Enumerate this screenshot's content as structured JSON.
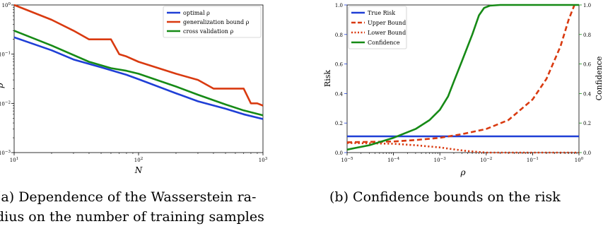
{
  "colors": {
    "blue": "#1f3fd6",
    "red": "#d93a10",
    "green": "#168a16"
  },
  "captions": {
    "left_line1": "(a) Dependence of the Wasserstein ra-",
    "left_line2": "dius on the number of training samples",
    "right": "(b) Confidence bounds on the risk"
  },
  "chart_data": [
    {
      "type": "line",
      "xscale": "log",
      "yscale": "log",
      "xlim": [
        10,
        1000
      ],
      "ylim": [
        0.001,
        1
      ],
      "xlabel": "N",
      "ylabel": "ρ",
      "xticks": [
        {
          "v": 10,
          "b": "10",
          "e": "1"
        },
        {
          "v": 100,
          "b": "10",
          "e": "2"
        },
        {
          "v": 1000,
          "b": "10",
          "e": "3"
        }
      ],
      "yticks": [
        {
          "v": 0.001,
          "b": "10",
          "e": "−3"
        },
        {
          "v": 0.01,
          "b": "10",
          "e": "−2"
        },
        {
          "v": 0.1,
          "b": "10",
          "e": "−1"
        },
        {
          "v": 1,
          "b": "10",
          "e": "0"
        }
      ],
      "legend_position": "top-right",
      "series": [
        {
          "name": "optimal ρ",
          "color": "#1f3fd6",
          "x": [
            10,
            20,
            30,
            50,
            80,
            100,
            200,
            300,
            500,
            700,
            1000
          ],
          "y": [
            0.22,
            0.12,
            0.078,
            0.054,
            0.038,
            0.031,
            0.016,
            0.011,
            0.0078,
            0.006,
            0.0048
          ]
        },
        {
          "name": "generalization bound ρ",
          "color": "#d93a10",
          "step": true,
          "x": [
            10,
            20,
            30,
            40,
            50,
            60,
            60,
            70,
            80,
            100,
            200,
            300,
            400,
            700,
            700,
            800,
            900,
            1000
          ],
          "y": [
            1.0,
            0.5,
            0.3,
            0.2,
            0.2,
            0.2,
            0.2,
            0.1,
            0.09,
            0.07,
            0.04,
            0.03,
            0.02,
            0.02,
            0.02,
            0.01,
            0.01,
            0.009
          ]
        },
        {
          "name": "cross validation ρ",
          "color": "#168a16",
          "x": [
            10,
            20,
            40,
            60,
            80,
            100,
            200,
            300,
            500,
            700,
            1000
          ],
          "y": [
            0.3,
            0.15,
            0.07,
            0.052,
            0.046,
            0.04,
            0.022,
            0.015,
            0.0095,
            0.0072,
            0.0057
          ]
        }
      ]
    },
    {
      "type": "line",
      "xscale": "log",
      "xlim": [
        1e-05,
        1
      ],
      "ylim": [
        0,
        1
      ],
      "y2lim": [
        0,
        1
      ],
      "xlabel": "ρ",
      "ylabel": "Risk",
      "y2label": "Confidence",
      "xticks": [
        {
          "v": 1e-05,
          "b": "10",
          "e": "−5"
        },
        {
          "v": 0.0001,
          "b": "10",
          "e": "−4"
        },
        {
          "v": 0.001,
          "b": "10",
          "e": "−3"
        },
        {
          "v": 0.01,
          "b": "10",
          "e": "−2"
        },
        {
          "v": 0.1,
          "b": "10",
          "e": "−1"
        },
        {
          "v": 1,
          "b": "10",
          "e": "0"
        }
      ],
      "yticks": [
        "0.0",
        "0.2",
        "0.4",
        "0.6",
        "0.8",
        "1.0"
      ],
      "y2ticks": [
        "0.0",
        "0.2",
        "0.4",
        "0.6",
        "0.8",
        "1.0"
      ],
      "legend_position": "top-left",
      "series": [
        {
          "name": "True Risk",
          "color": "#1f3fd6",
          "style": "solid",
          "axis": "left",
          "x": [
            1e-05,
            1
          ],
          "y": [
            0.11,
            0.11
          ]
        },
        {
          "name": "Upper Bound",
          "color": "#d93a10",
          "style": "dashed",
          "axis": "left",
          "x": [
            1e-05,
            0.0001,
            0.0003,
            0.001,
            0.003,
            0.01,
            0.03,
            0.1,
            0.2,
            0.4,
            0.6,
            0.8
          ],
          "y": [
            0.07,
            0.075,
            0.085,
            0.1,
            0.125,
            0.16,
            0.22,
            0.36,
            0.5,
            0.72,
            0.9,
            1.0
          ]
        },
        {
          "name": "Lower Bound",
          "color": "#d93a10",
          "style": "dotted",
          "axis": "left",
          "x": [
            1e-05,
            0.0001,
            0.0003,
            0.001,
            0.002,
            0.004,
            0.007,
            0.01,
            0.1,
            1
          ],
          "y": [
            0.065,
            0.06,
            0.05,
            0.035,
            0.022,
            0.01,
            0.004,
            0.0,
            0.0,
            0.0
          ]
        },
        {
          "name": "Confidence",
          "color": "#168a16",
          "style": "solid",
          "axis": "right",
          "x": [
            1e-05,
            3e-05,
            0.0001,
            0.0003,
            0.0006,
            0.001,
            0.0015,
            0.002,
            0.003,
            0.005,
            0.007,
            0.009,
            0.012,
            0.02,
            0.05,
            0.2,
            1
          ],
          "y": [
            0.02,
            0.05,
            0.1,
            0.16,
            0.22,
            0.29,
            0.38,
            0.48,
            0.62,
            0.8,
            0.93,
            0.98,
            0.995,
            1.0,
            1.0,
            1.0,
            1.0
          ]
        }
      ]
    }
  ]
}
